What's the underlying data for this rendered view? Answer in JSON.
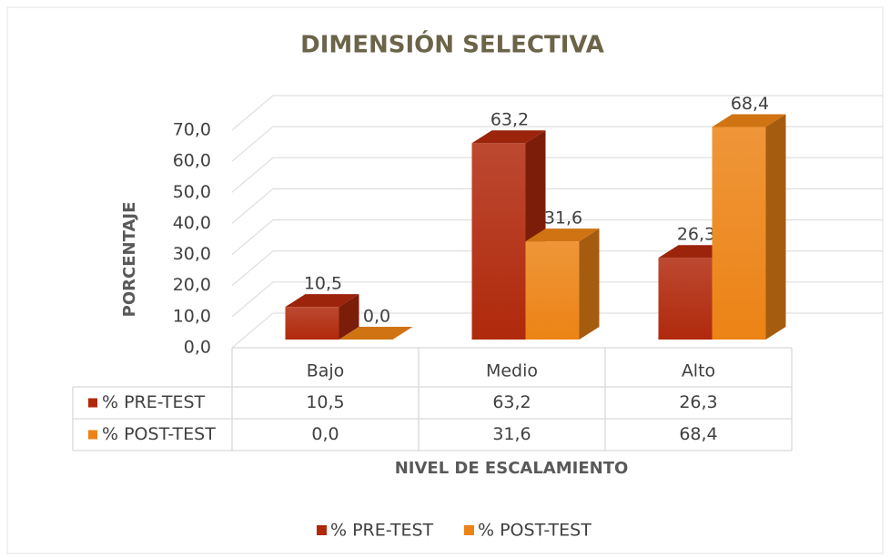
{
  "chart_data": {
    "type": "bar3d",
    "title": "DIMENSIÓN SELECTIVA",
    "x_label": "NIVEL DE ESCALAMIENTO",
    "y_label": "PORCENTAJE",
    "categories": [
      "Bajo",
      "Medio",
      "Alto"
    ],
    "series": [
      {
        "name": "% PRE-TEST",
        "color": "#b0290c",
        "values": [
          10.5,
          63.2,
          26.3
        ],
        "value_labels": [
          "10,5",
          "63,2",
          "26,3"
        ]
      },
      {
        "name": "% POST-TEST",
        "color": "#ec8316",
        "values": [
          0.0,
          31.6,
          68.4
        ],
        "value_labels": [
          "0,0",
          "31,6",
          "68,4"
        ]
      }
    ],
    "ylim": [
      0,
      70
    ],
    "yticks": [
      {
        "value": 0,
        "label": "0,0"
      },
      {
        "value": 10,
        "label": "10,0"
      },
      {
        "value": 20,
        "label": "20,0"
      },
      {
        "value": 30,
        "label": "30,0"
      },
      {
        "value": 40,
        "label": "40,0"
      },
      {
        "value": 50,
        "label": "50,0"
      },
      {
        "value": 60,
        "label": "60,0"
      },
      {
        "value": 70,
        "label": "70,0"
      }
    ],
    "grid": true,
    "legend": "bottom",
    "data_table": true
  }
}
